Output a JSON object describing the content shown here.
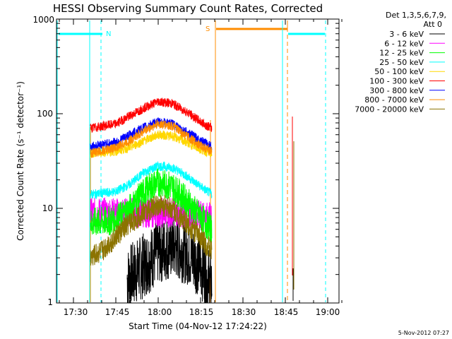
{
  "chart_data": {
    "type": "line",
    "title": "HESSI Observing Summary Count Rates, Corrected",
    "xlabel": "Start Time (04-Nov-12 17:24:22)",
    "ylabel": "Corrected Count Rate (s⁻¹ detector⁻¹)",
    "y_scale": "log",
    "ylim": [
      1,
      1000
    ],
    "xlim": [
      "17:24",
      "19:04"
    ],
    "x_ticks": [
      "17:30",
      "17:45",
      "18:00",
      "18:15",
      "18:30",
      "18:45",
      "19:00"
    ],
    "y_ticks": [
      "1",
      "10",
      "100",
      "1000"
    ],
    "grid": false,
    "legend_position": "top-right",
    "legend_header": [
      "Det 1,3,5,6,7,9,",
      "Att 0"
    ],
    "footer_date": "5-Nov-2012 07:27",
    "series": [
      {
        "name": "3 - 6 keV",
        "color": "#000000",
        "x": [
          "17:49",
          "17:55",
          "18:00",
          "18:05",
          "18:10",
          "18:15",
          "18:19"
        ],
        "values": [
          1.8,
          2.5,
          3.5,
          4,
          3.5,
          2.5,
          1.5
        ]
      },
      {
        "name": "6 - 12 keV",
        "color": "#ff00ff",
        "x": [
          "17:36",
          "17:45",
          "18:00",
          "18:10",
          "18:19"
        ],
        "values": [
          9,
          9,
          9,
          9,
          8
        ]
      },
      {
        "name": "12 - 25 keV",
        "color": "#00ff00",
        "x": [
          "17:36",
          "17:45",
          "17:50",
          "17:55",
          "18:00",
          "18:05",
          "18:10",
          "18:15",
          "18:19"
        ],
        "values": [
          7,
          7.5,
          10,
          15,
          19,
          17,
          12,
          8,
          6
        ]
      },
      {
        "name": "25 - 50 keV",
        "color": "#00ffff",
        "x": [
          "17:36",
          "17:45",
          "17:50",
          "17:55",
          "18:00",
          "18:05",
          "18:10",
          "18:15",
          "18:19"
        ],
        "values": [
          14,
          15,
          18,
          24,
          28,
          27,
          22,
          17,
          14
        ]
      },
      {
        "name": "50 - 100 keV",
        "color": "#ffd700",
        "x": [
          "17:36",
          "17:45",
          "17:50",
          "17:55",
          "18:00",
          "18:05",
          "18:10",
          "18:15",
          "18:19"
        ],
        "values": [
          38,
          40,
          44,
          52,
          60,
          58,
          50,
          42,
          38
        ]
      },
      {
        "name": "100 - 300 keV",
        "color": "#ff0000",
        "x": [
          "17:36",
          "17:45",
          "17:50",
          "17:55",
          "18:00",
          "18:05",
          "18:10",
          "18:15",
          "18:19"
        ],
        "values": [
          70,
          78,
          95,
          115,
          135,
          128,
          105,
          82,
          70
        ]
      },
      {
        "name": "300 - 800 keV",
        "color": "#0000ff",
        "x": [
          "17:36",
          "17:45",
          "17:50",
          "17:55",
          "18:00",
          "18:05",
          "18:10",
          "18:15",
          "18:19"
        ],
        "values": [
          45,
          50,
          60,
          72,
          82,
          78,
          64,
          52,
          45
        ]
      },
      {
        "name": "800 - 7000 keV",
        "color": "#ff8c00",
        "x": [
          "17:36",
          "17:45",
          "17:50",
          "17:55",
          "18:00",
          "18:05",
          "18:10",
          "18:15",
          "18:19"
        ],
        "values": [
          38,
          44,
          52,
          66,
          78,
          74,
          58,
          46,
          40
        ]
      },
      {
        "name": "7000 - 20000 keV",
        "color": "#8b7300",
        "x": [
          "17:36",
          "17:40",
          "17:45",
          "17:50",
          "17:55",
          "18:00",
          "18:05",
          "18:10",
          "18:15",
          "18:19"
        ],
        "values": [
          3,
          3.5,
          5,
          7,
          9,
          11,
          10,
          7,
          5,
          3.5
        ]
      }
    ],
    "annotations": [
      {
        "label": "N",
        "color": "#00ffff"
      },
      {
        "label": "S",
        "color": "#ff8c00"
      }
    ]
  }
}
